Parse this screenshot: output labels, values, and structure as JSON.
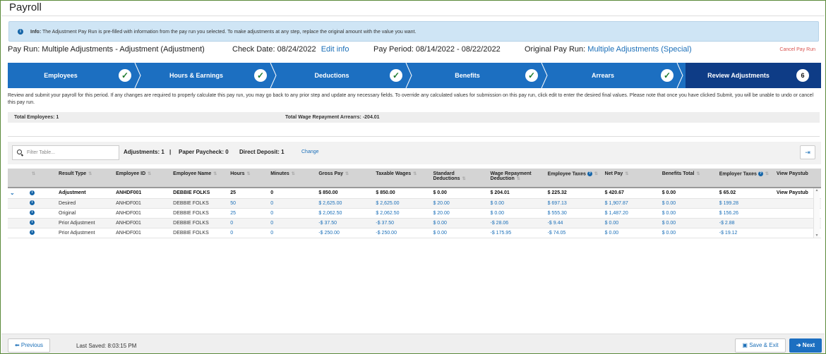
{
  "page": {
    "title": "Payroll"
  },
  "info": {
    "label": "Info:",
    "text": "The Adjustment Pay Run is pre-filled with information from the pay run you selected. To make adjustments at any step, replace the original amount with the value you want."
  },
  "payrun": {
    "pay_run": "Pay Run: Multiple Adjustments - Adjustment (Adjustment)",
    "check_date": "Check Date: 08/24/2022",
    "edit_info": "Edit info",
    "pay_period": "Pay Period: 08/14/2022 - 08/22/2022",
    "original_label": "Original Pay Run:",
    "original_value": "Multiple Adjustments (Special)",
    "cancel": "Cancel Pay Run"
  },
  "steps": [
    {
      "label": "Employees",
      "status": "done"
    },
    {
      "label": "Hours & Earnings",
      "status": "done"
    },
    {
      "label": "Deductions",
      "status": "done"
    },
    {
      "label": "Benefits",
      "status": "done"
    },
    {
      "label": "Arrears",
      "status": "done"
    },
    {
      "label": "Review Adjustments",
      "status": "current",
      "number": "6"
    }
  ],
  "description": "Review and submit your payroll for this period. If any changes are required to properly calculate this pay run, you may go back to any prior step and update any necessary fields. To override any calculated values for submission on this pay run, click edit to enter the desired final values. Please note that once you have clicked Submit, you will be unable to undo or cancel this pay run.",
  "totals": {
    "employees": "Total Employees: 1",
    "arrears": "Total Wage Repayment Arrearrs: -204.01"
  },
  "toolbar": {
    "filter_placeholder": "Filter Table...",
    "adjustments": "Adjustments: 1",
    "separator": "|",
    "paper": "Paper Paycheck: 0",
    "direct": "Direct Deposit: 1",
    "change": "Change"
  },
  "table": {
    "headers": [
      "Result Type",
      "Employee ID",
      "Employee Name",
      "Hours",
      "Minutes",
      "Gross Pay",
      "Taxable Wages",
      "Standard Deductions",
      "Wage Repayment Deduction",
      "Employee Taxes",
      "Net Pay",
      "Benefits Total",
      "Employer Taxes",
      "View Paystub"
    ],
    "rows": [
      [
        "Adjustment",
        "ANHDF001",
        "DEBBIE FOLKS",
        "25",
        "0",
        "$ 850.00",
        "$ 850.00",
        "$ 0.00",
        "$ 204.01",
        "$ 225.32",
        "$ 420.67",
        "$ 0.00",
        "$ 65.02",
        "View Paystub"
      ],
      [
        "Desired",
        "ANHDF001",
        "DEBBIE FOLKS",
        "50",
        "0",
        "$ 2,625.00",
        "$ 2,625.00",
        "$ 20.00",
        "$ 0.00",
        "$ 697.13",
        "$ 1,907.87",
        "$ 0.00",
        "$ 199.28",
        ""
      ],
      [
        "Original",
        "ANHDF001",
        "DEBBIE FOLKS",
        "25",
        "0",
        "$ 2,062.50",
        "$ 2,062.50",
        "$ 20.00",
        "$ 0.00",
        "$ 555.30",
        "$ 1,487.20",
        "$ 0.00",
        "$ 156.26",
        ""
      ],
      [
        "Prior Adjustment",
        "ANHDF001",
        "DEBBIE FOLKS",
        "0",
        "0",
        "-$ 37.50",
        "-$ 37.50",
        "$ 0.00",
        "-$ 28.06",
        "-$ 9.44",
        "$ 0.00",
        "$ 0.00",
        "-$ 2.88",
        ""
      ],
      [
        "Prior Adjustment",
        "ANHDF001",
        "DEBBIE FOLKS",
        "0",
        "0",
        "-$ 250.00",
        "-$ 250.00",
        "$ 0.00",
        "-$ 175.95",
        "-$ 74.05",
        "$ 0.00",
        "$ 0.00",
        "-$ 19.12",
        ""
      ]
    ]
  },
  "footer": {
    "previous": "Previous",
    "last_saved": "Last Saved: 8:03:15 PM",
    "save_exit": "Save & Exit",
    "next": "Next"
  }
}
